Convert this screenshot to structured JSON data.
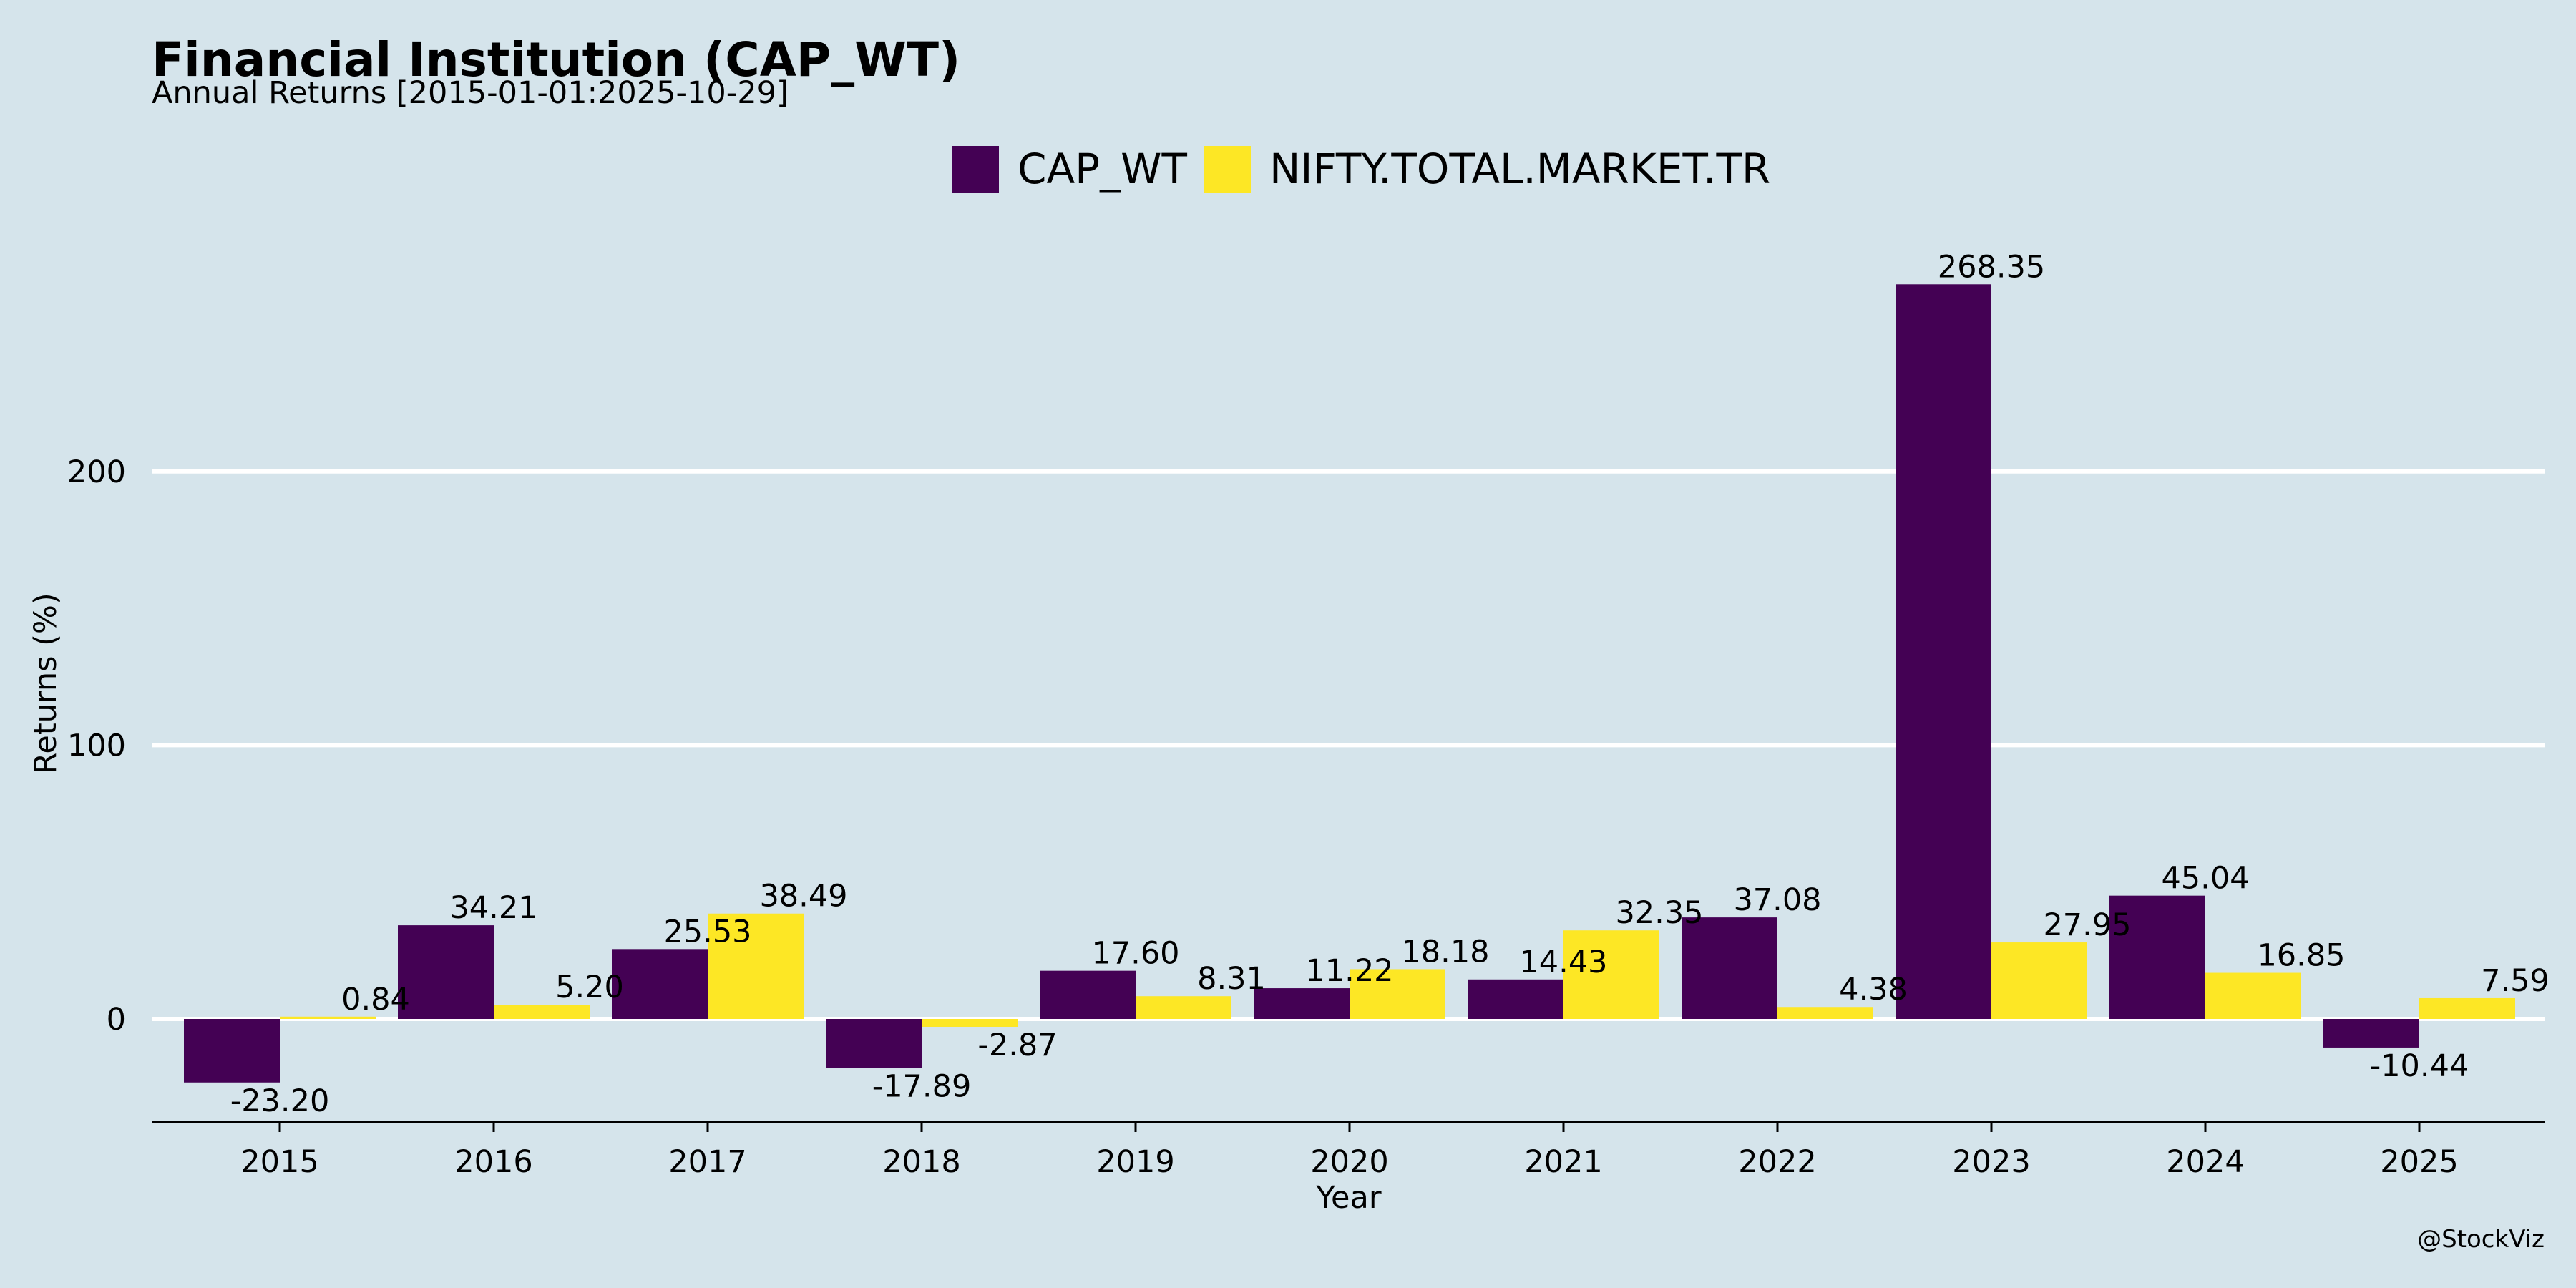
{
  "header": {
    "title": "Financial Institution (CAP_WT)",
    "subtitle": "Annual Returns [2015-01-01:2025-10-29]"
  },
  "watermark": "@StockViz",
  "colors": {
    "background": "#d5e4eb",
    "series1": "#440154",
    "series2": "#fde725",
    "grid": "#ffffff",
    "axis": "#000000"
  },
  "chart_data": {
    "type": "bar",
    "title": "Financial Institution (CAP_WT)",
    "subtitle": "Annual Returns [2015-01-01:2025-10-29]",
    "xlabel": "Year",
    "ylabel": "Returns (%)",
    "categories": [
      "2015",
      "2016",
      "2017",
      "2018",
      "2019",
      "2020",
      "2021",
      "2022",
      "2023",
      "2024",
      "2025"
    ],
    "series": [
      {
        "name": "CAP_WT",
        "color": "#440154",
        "values": [
          -23.2,
          34.21,
          25.53,
          -17.89,
          17.6,
          11.22,
          14.43,
          37.08,
          268.35,
          45.04,
          -10.44
        ],
        "labels": [
          "-23.20",
          "34.21",
          "25.53",
          "-17.89",
          "17.60",
          "11.22",
          "14.43",
          "37.08",
          "268.35",
          "45.04",
          "-10.44"
        ]
      },
      {
        "name": "NIFTY.TOTAL.MARKET.TR",
        "color": "#fde725",
        "values": [
          0.84,
          5.2,
          38.49,
          -2.87,
          8.31,
          18.18,
          32.35,
          4.38,
          27.95,
          16.85,
          7.59
        ],
        "labels": [
          "0.84",
          "5.20",
          "38.49",
          "-2.87",
          "8.31",
          "18.18",
          "32.35",
          "4.38",
          "27.95",
          "16.85",
          "7.59"
        ]
      }
    ],
    "yticks": [
      0,
      100,
      200
    ],
    "ytick_labels": [
      "0",
      "100",
      "200"
    ],
    "ylim": [
      -38,
      292
    ],
    "grid": true,
    "legend": "top-center"
  }
}
